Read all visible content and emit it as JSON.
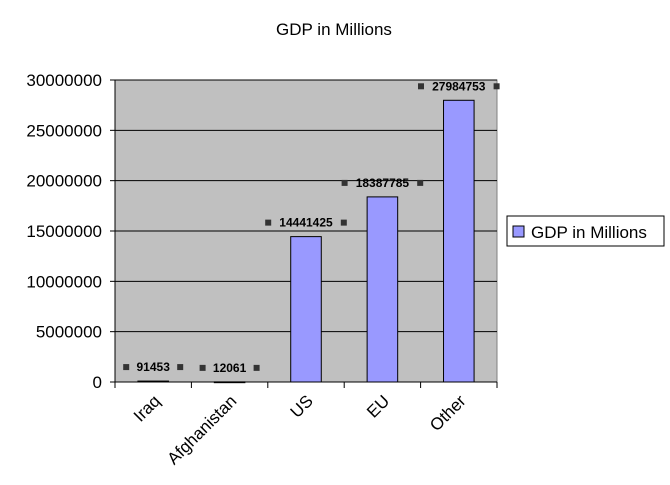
{
  "chart_data": {
    "type": "bar",
    "title": "GDP in Millions",
    "xlabel": "",
    "ylabel": "",
    "categories": [
      "Iraq",
      "Afghanistan",
      "US",
      "EU",
      "Other"
    ],
    "series": [
      {
        "name": "GDP in Millions",
        "values": [
          91453,
          12061,
          14441425,
          18387785,
          27984753
        ],
        "labels": [
          "91453",
          "12061",
          "14441425",
          "18387785",
          "27984753"
        ]
      }
    ],
    "ylim": [
      0,
      30000000
    ],
    "yticks": [
      0,
      5000000,
      10000000,
      15000000,
      20000000,
      25000000,
      30000000
    ],
    "ytick_labels": [
      "0",
      "5000000",
      "10000000",
      "15000000",
      "20000000",
      "25000000",
      "30000000"
    ],
    "grid": true,
    "legend": "right",
    "colors": {
      "bar_fill": "#9999ff",
      "bar_stroke": "#000000",
      "plot_background": "#c0c0c0",
      "gridline": "#000000",
      "data_label_marker": "#333333"
    }
  }
}
